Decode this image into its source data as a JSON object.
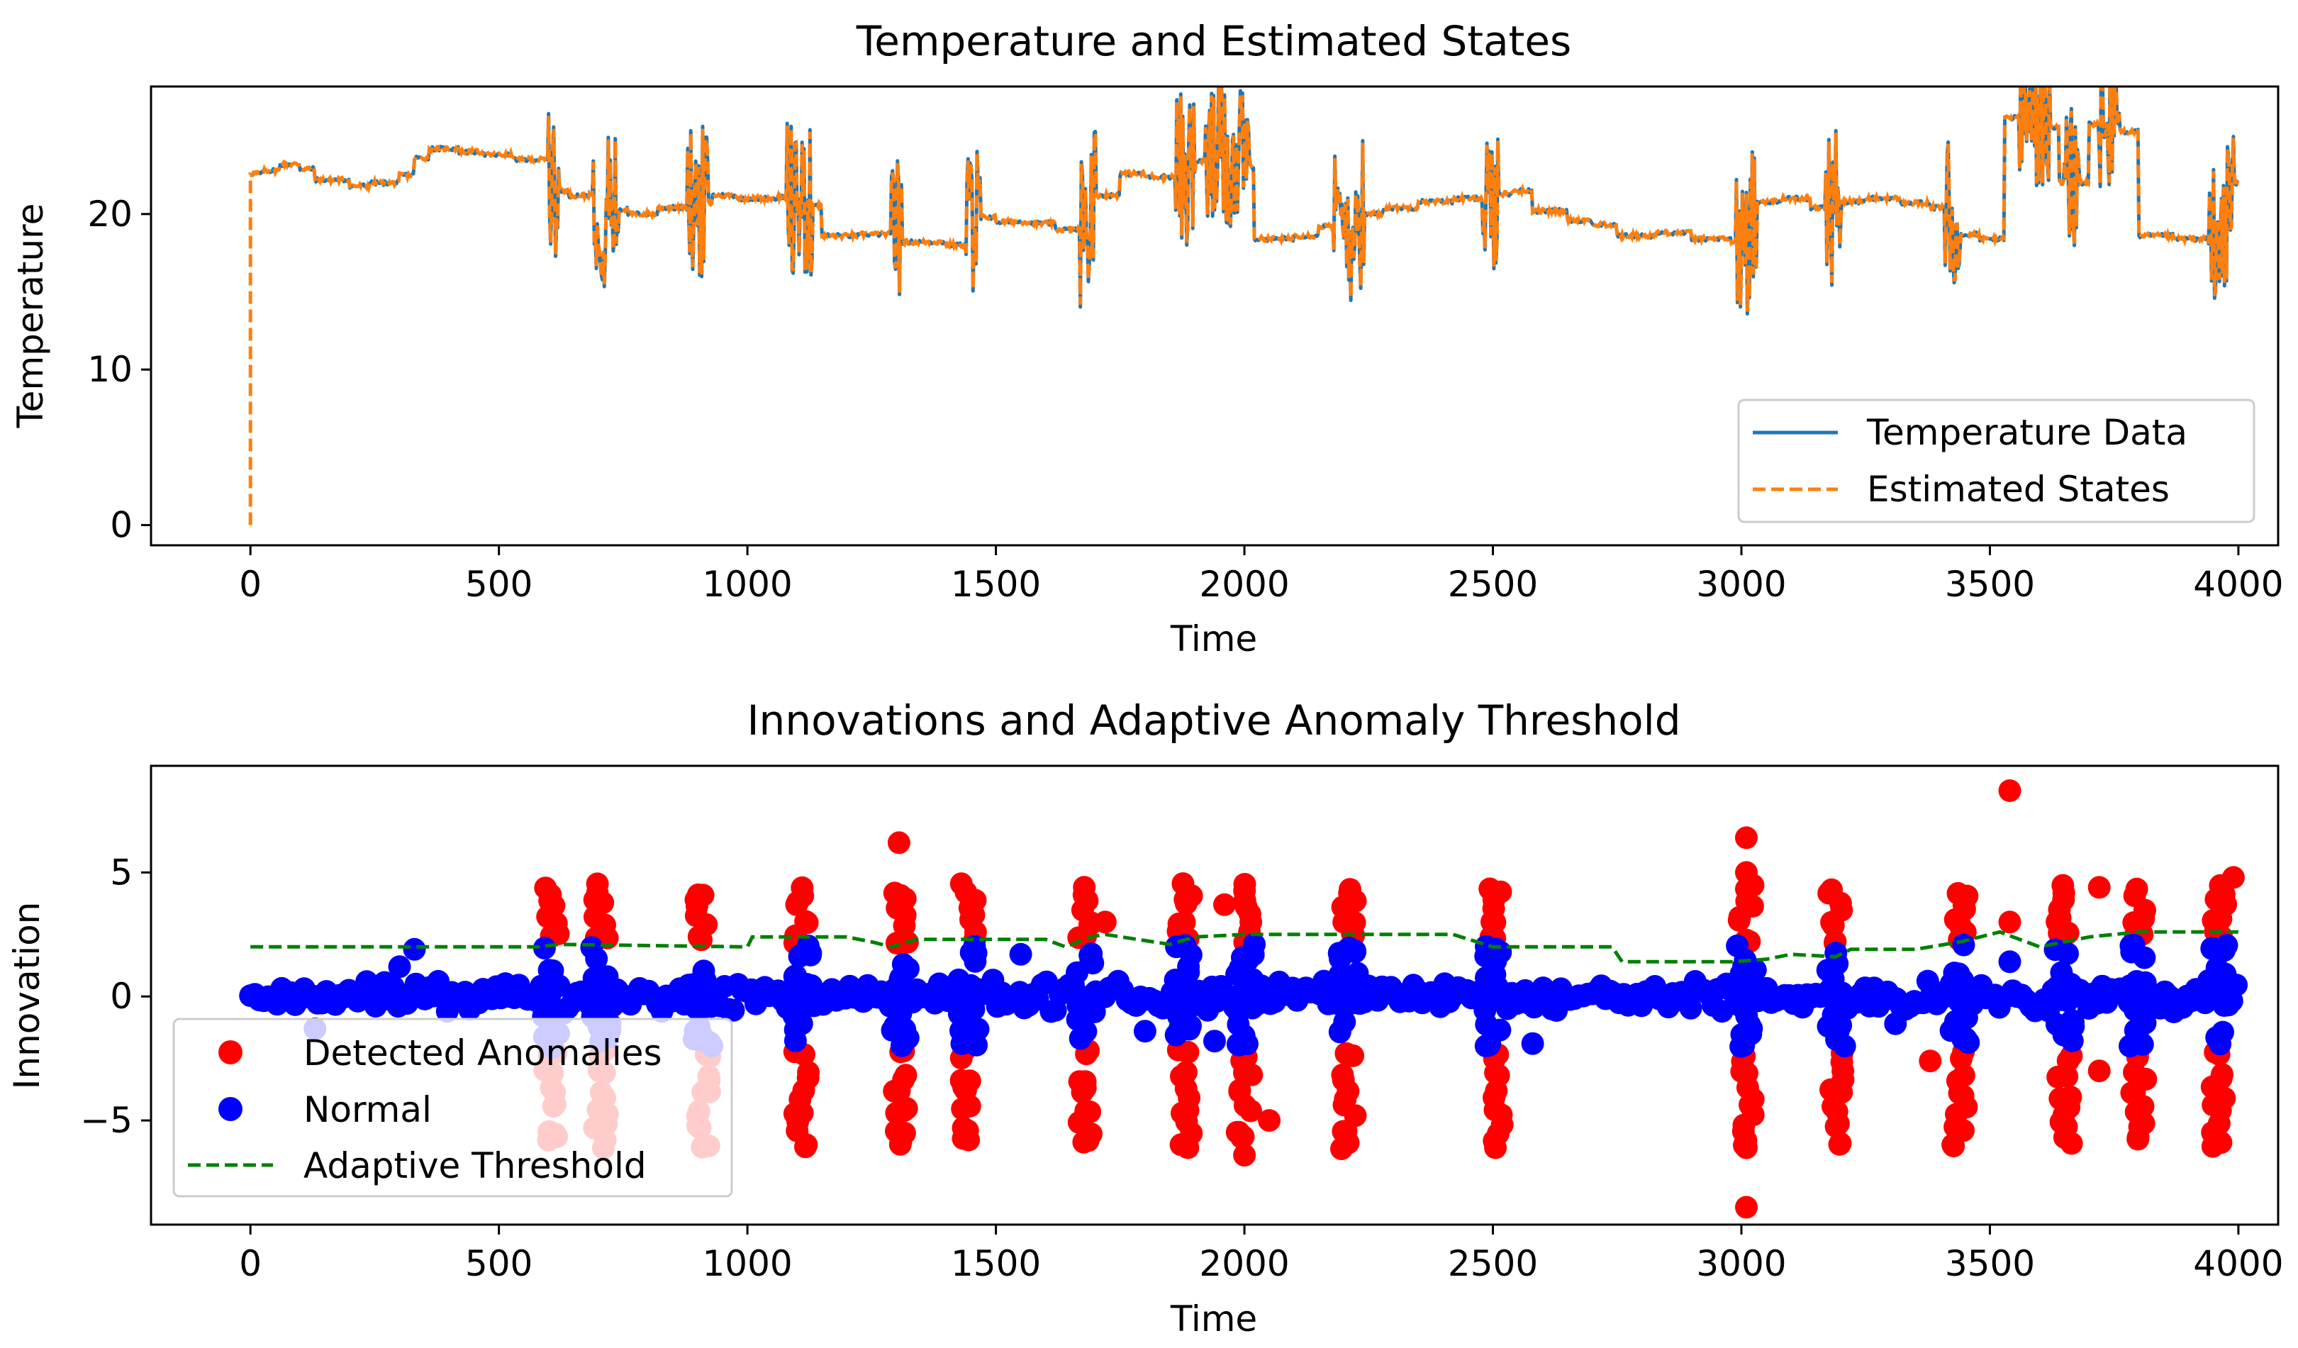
{
  "chart_data": [
    {
      "type": "line",
      "title": "Temperature and Estimated States",
      "xlabel": "Time",
      "ylabel": "Temperature",
      "xlim": [
        -200,
        4080
      ],
      "ylim": [
        -1.3,
        28.2
      ],
      "xticks": [
        0,
        500,
        1000,
        1500,
        2000,
        2500,
        3000,
        3500,
        4000
      ],
      "xtick_labels": [
        "0",
        "500",
        "1000",
        "1500",
        "2000",
        "2500",
        "3000",
        "3500",
        "4000"
      ],
      "yticks": [
        0,
        10,
        20
      ],
      "ytick_labels": [
        "0",
        "10",
        "20"
      ],
      "grid": false,
      "legend": {
        "placement": "lower-right",
        "entries": [
          "Temperature Data",
          "Estimated States"
        ]
      },
      "series": [
        {
          "name": "Temperature Data",
          "style": "solid",
          "color": "#1f77b4",
          "level_steps": [
            [
              0,
              22.6
            ],
            [
              25,
              22.8
            ],
            [
              60,
              23.2
            ],
            [
              100,
              22.9
            ],
            [
              130,
              22.2
            ],
            [
              200,
              21.8
            ],
            [
              240,
              22.0
            ],
            [
              300,
              22.5
            ],
            [
              330,
              23.6
            ],
            [
              360,
              24.2
            ],
            [
              420,
              24.0
            ],
            [
              470,
              23.8
            ],
            [
              530,
              23.5
            ],
            [
              600,
              21.5
            ],
            [
              640,
              21.2
            ],
            [
              700,
              20.3
            ],
            [
              760,
              20.0
            ],
            [
              820,
              20.4
            ],
            [
              880,
              20.7
            ],
            [
              930,
              21.2
            ],
            [
              980,
              21.0
            ],
            [
              1060,
              21.1
            ],
            [
              1110,
              20.6
            ],
            [
              1150,
              18.6
            ],
            [
              1230,
              18.7
            ],
            [
              1290,
              18.9
            ],
            [
              1310,
              18.2
            ],
            [
              1400,
              18.0
            ],
            [
              1440,
              19.8
            ],
            [
              1500,
              19.5
            ],
            [
              1570,
              19.4
            ],
            [
              1620,
              19.0
            ],
            [
              1690,
              21.2
            ],
            [
              1750,
              22.6
            ],
            [
              1800,
              22.4
            ],
            [
              1860,
              22.9
            ],
            [
              1900,
              23.4
            ],
            [
              1980,
              23.0
            ],
            [
              2020,
              18.4
            ],
            [
              2100,
              18.6
            ],
            [
              2150,
              19.2
            ],
            [
              2220,
              20.0
            ],
            [
              2280,
              20.4
            ],
            [
              2350,
              20.8
            ],
            [
              2420,
              21.0
            ],
            [
              2480,
              21.3
            ],
            [
              2540,
              21.5
            ],
            [
              2580,
              20.2
            ],
            [
              2650,
              19.6
            ],
            [
              2700,
              19.3
            ],
            [
              2750,
              18.6
            ],
            [
              2830,
              18.8
            ],
            [
              2900,
              18.4
            ],
            [
              2980,
              18.2
            ],
            [
              3020,
              20.8
            ],
            [
              3080,
              21.0
            ],
            [
              3140,
              20.4
            ],
            [
              3190,
              20.8
            ],
            [
              3250,
              21.0
            ],
            [
              3320,
              20.7
            ],
            [
              3380,
              20.4
            ],
            [
              3420,
              18.7
            ],
            [
              3480,
              18.4
            ],
            [
              3530,
              26.2
            ],
            [
              3600,
              25.6
            ],
            [
              3640,
              22.0
            ],
            [
              3700,
              25.8
            ],
            [
              3760,
              25.3
            ],
            [
              3800,
              18.6
            ],
            [
              3870,
              18.4
            ],
            [
              3950,
              19.5
            ],
            [
              3990,
              22.0
            ],
            [
              4000,
              22.0
            ]
          ],
          "burst_intervals": [
            [
              600,
              620
            ],
            [
              690,
              740
            ],
            [
              880,
              920
            ],
            [
              1080,
              1130
            ],
            [
              1290,
              1310
            ],
            [
              1440,
              1470
            ],
            [
              1670,
              1700
            ],
            [
              1860,
              1900
            ],
            [
              1920,
              2010
            ],
            [
              2180,
              2240
            ],
            [
              2480,
              2510
            ],
            [
              2990,
              3030
            ],
            [
              3170,
              3200
            ],
            [
              3410,
              3440
            ],
            [
              3560,
              3620
            ],
            [
              3650,
              3680
            ],
            [
              3720,
              3760
            ],
            [
              3940,
              3990
            ]
          ]
        },
        {
          "name": "Estimated States",
          "style": "dashed",
          "color": "#ff7f0e",
          "initial_point": [
            0,
            0
          ],
          "tracks": "Temperature Data"
        }
      ]
    },
    {
      "type": "scatter",
      "title": "Innovations and Adaptive Anomaly Threshold",
      "xlabel": "Time",
      "ylabel": "Innovation",
      "xlim": [
        -200,
        4080
      ],
      "ylim": [
        -9.2,
        9.3
      ],
      "xticks": [
        0,
        500,
        1000,
        1500,
        2000,
        2500,
        3000,
        3500,
        4000
      ],
      "xtick_labels": [
        "0",
        "500",
        "1000",
        "1500",
        "2000",
        "2500",
        "3000",
        "3500",
        "4000"
      ],
      "yticks": [
        -5,
        0,
        5
      ],
      "ytick_labels": [
        "−5",
        "0",
        "5"
      ],
      "grid": false,
      "legend": {
        "placement": "lower-left",
        "entries": [
          "Detected Anomalies",
          "Normal",
          "Adaptive Threshold"
        ]
      },
      "series": [
        {
          "name": "Detected Anomalies",
          "color": "#ff0000",
          "marker": "circle",
          "clusters_x": [
            607,
            705,
            910,
            1110,
            1310,
            1445,
            1680,
            1880,
            2000,
            2210,
            2505,
            3010,
            3190,
            3440,
            3650,
            3800,
            3960
          ],
          "cluster_y_values": [
            -5.9,
            -5.3,
            -4.6,
            -3.9,
            -3.2,
            -2.4,
            2.4,
            3.1,
            3.7,
            4.3
          ],
          "extra_points": [
            [
              1305,
              6.2
            ],
            [
              3010,
              6.4
            ],
            [
              3010,
              5.0
            ],
            [
              3010,
              -6.1
            ],
            [
              3010,
              -8.5
            ],
            [
              3540,
              8.3
            ],
            [
              3540,
              3.0
            ],
            [
              3720,
              4.4
            ],
            [
              3720,
              -3.0
            ],
            [
              3990,
              4.8
            ],
            [
              3380,
              -2.6
            ],
            [
              1300,
              -4.7
            ],
            [
              2050,
              -5.0
            ],
            [
              2000,
              -6.4
            ],
            [
              1960,
              3.7
            ],
            [
              1720,
              3.0
            ],
            [
              2010,
              2.6
            ],
            [
              1305,
              3.8
            ]
          ]
        },
        {
          "name": "Normal",
          "color": "#0000ff",
          "marker": "circle",
          "baseline_x_range": [
            0,
            4000
          ],
          "baseline_spread": 0.7,
          "clusters_x": [
            607,
            705,
            910,
            1110,
            1310,
            1445,
            1680,
            1880,
            2000,
            2210,
            2505,
            3010,
            3190,
            3440,
            3650,
            3800,
            3960
          ],
          "cluster_y_range": [
            -2.1,
            2.1
          ],
          "extra_points": [
            [
              330,
              1.9
            ],
            [
              300,
              1.2
            ],
            [
              1550,
              1.7
            ],
            [
              2020,
              2.1
            ],
            [
              2580,
              -1.9
            ],
            [
              1800,
              -1.4
            ],
            [
              1940,
              -1.8
            ],
            [
              3310,
              -1.1
            ],
            [
              3540,
              1.4
            ],
            [
              130,
              -1.3
            ]
          ]
        },
        {
          "name": "Adaptive Threshold",
          "style": "dashed",
          "color": "#008000",
          "points": [
            [
              0,
              2.0
            ],
            [
              580,
              2.0
            ],
            [
              620,
              2.1
            ],
            [
              1000,
              2.0
            ],
            [
              1010,
              2.4
            ],
            [
              1200,
              2.4
            ],
            [
              1250,
              2.2
            ],
            [
              1290,
              2.0
            ],
            [
              1340,
              2.3
            ],
            [
              1460,
              2.3
            ],
            [
              1600,
              2.3
            ],
            [
              1640,
              2.0
            ],
            [
              1690,
              2.4
            ],
            [
              1720,
              2.5
            ],
            [
              1850,
              2.1
            ],
            [
              1900,
              2.4
            ],
            [
              2000,
              2.5
            ],
            [
              2200,
              2.5
            ],
            [
              2420,
              2.5
            ],
            [
              2500,
              2.0
            ],
            [
              2740,
              2.0
            ],
            [
              2760,
              1.4
            ],
            [
              2980,
              1.4
            ],
            [
              3050,
              1.5
            ],
            [
              3100,
              1.7
            ],
            [
              3190,
              1.6
            ],
            [
              3220,
              1.9
            ],
            [
              3350,
              1.9
            ],
            [
              3440,
              2.2
            ],
            [
              3520,
              2.6
            ],
            [
              3600,
              2.0
            ],
            [
              3700,
              2.4
            ],
            [
              3800,
              2.6
            ],
            [
              4000,
              2.6
            ]
          ]
        }
      ]
    }
  ]
}
